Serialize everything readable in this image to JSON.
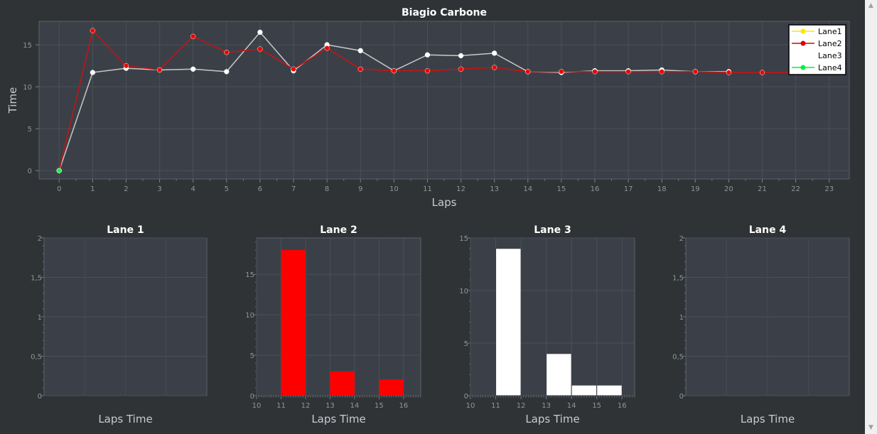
{
  "main_chart": {
    "title": "Biagio Carbone",
    "xlabel": "Laps",
    "ylabel": "Time",
    "legend": [
      "Lane1",
      "Lane2",
      "Lane3",
      "Lane4"
    ]
  },
  "histograms": [
    {
      "title": "Lane 1",
      "xlabel": "Laps Time"
    },
    {
      "title": "Lane 2",
      "xlabel": "Laps Time"
    },
    {
      "title": "Lane 3",
      "xlabel": "Laps Time"
    },
    {
      "title": "Lane 4",
      "xlabel": "Laps Time"
    }
  ],
  "chart_data": [
    {
      "type": "line",
      "title": "Biagio Carbone",
      "xlabel": "Laps",
      "ylabel": "Time",
      "xlim": [
        -0.6,
        23.6
      ],
      "ylim": [
        -1,
        17.8
      ],
      "xticks": [
        "0",
        "1",
        "2",
        "3",
        "4",
        "5",
        "6",
        "7",
        "8",
        "9",
        "10",
        "11",
        "12",
        "13",
        "14",
        "15",
        "16",
        "17",
        "18",
        "19",
        "20",
        "21",
        "22",
        "23"
      ],
      "yticks": [
        "0",
        "5",
        "10",
        "15"
      ],
      "grid": true,
      "legend_position": "top-right",
      "series": [
        {
          "name": "Lane1",
          "color": "#ffff00",
          "x": [],
          "y": []
        },
        {
          "name": "Lane2",
          "color": "#ff0000",
          "x": [
            0,
            1,
            2,
            3,
            4,
            5,
            6,
            7,
            8,
            9,
            10,
            11,
            12,
            13,
            14,
            15,
            16,
            17,
            18,
            19,
            20,
            21,
            22
          ],
          "y": [
            0,
            16.7,
            12.5,
            12.0,
            16.0,
            14.1,
            14.5,
            12.1,
            14.6,
            12.1,
            11.9,
            11.9,
            12.1,
            12.3,
            11.8,
            11.8,
            11.8,
            11.8,
            11.8,
            11.8,
            11.7,
            11.7,
            11.7
          ]
        },
        {
          "name": "Lane3",
          "color": "#ffffff",
          "x": [
            0,
            1,
            2,
            3,
            4,
            5,
            6,
            7,
            8,
            9,
            10,
            11,
            12,
            13,
            14,
            15,
            16,
            17,
            18,
            19,
            20
          ],
          "y": [
            0,
            11.7,
            12.2,
            12.0,
            12.1,
            11.8,
            16.5,
            11.9,
            15.0,
            14.3,
            11.9,
            13.8,
            13.7,
            14.0,
            11.8,
            11.7,
            11.9,
            11.9,
            12.0,
            11.8,
            11.8
          ]
        },
        {
          "name": "Lane4",
          "color": "#00ff44",
          "x": [
            0
          ],
          "y": [
            0
          ]
        }
      ]
    },
    {
      "type": "bar",
      "title": "Lane 1",
      "xlabel": "Laps Time",
      "ylim": [
        0,
        2
      ],
      "yticks": [
        "0",
        "0,5",
        "1",
        "1,5",
        "2"
      ],
      "xticks": [],
      "bins": [],
      "values": [],
      "color": "#ffff00"
    },
    {
      "type": "bar",
      "title": "Lane 2",
      "xlabel": "Laps Time",
      "xlim": [
        10,
        16.7
      ],
      "ylim": [
        0,
        19.5
      ],
      "xticks": [
        "10",
        "11",
        "12",
        "13",
        "14",
        "15",
        "16"
      ],
      "yticks": [
        "0",
        "5",
        "10",
        "15"
      ],
      "bins": [
        [
          11,
          12
        ],
        [
          13,
          14
        ],
        [
          15,
          16
        ]
      ],
      "values": [
        18,
        3,
        2
      ],
      "color": "#ff0000"
    },
    {
      "type": "bar",
      "title": "Lane 3",
      "xlabel": "Laps Time",
      "xlim": [
        10,
        16.5
      ],
      "ylim": [
        0,
        15
      ],
      "xticks": [
        "10",
        "11",
        "12",
        "13",
        "14",
        "15",
        "16"
      ],
      "yticks": [
        "0",
        "5",
        "10",
        "15"
      ],
      "bins": [
        [
          11,
          12
        ],
        [
          13,
          14
        ],
        [
          14,
          15
        ],
        [
          15,
          16
        ]
      ],
      "values": [
        14,
        4,
        1,
        1
      ],
      "color": "#ffffff"
    },
    {
      "type": "bar",
      "title": "Lane 4",
      "xlabel": "Laps Time",
      "ylim": [
        0,
        2
      ],
      "yticks": [
        "0",
        "0,5",
        "1",
        "1,5",
        "2"
      ],
      "xticks": [],
      "bins": [],
      "values": [],
      "color": "#00ff44"
    }
  ]
}
